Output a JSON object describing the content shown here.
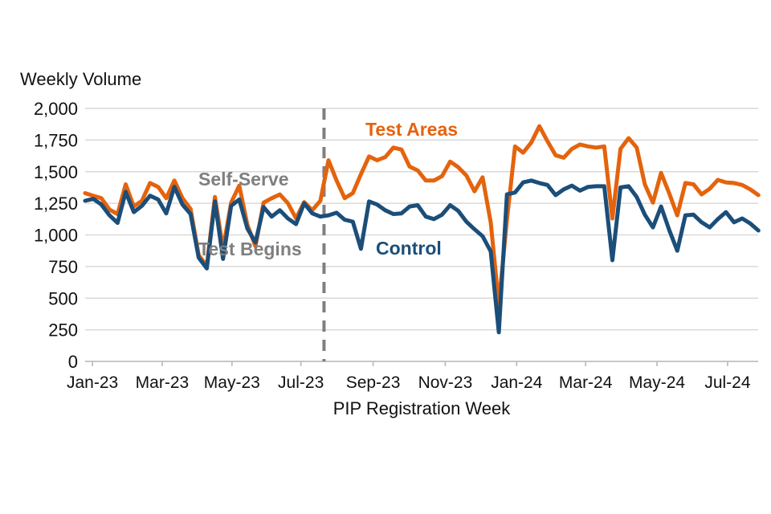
{
  "chart_data": {
    "type": "line",
    "title": "Weekly Volume",
    "xlabel": "PIP Registration Week",
    "ylabel": "",
    "ylim": [
      0,
      2000
    ],
    "ytick_step": 250,
    "yticks": [
      {
        "value": 0,
        "label": "0"
      },
      {
        "value": 250,
        "label": "250"
      },
      {
        "value": 500,
        "label": "500"
      },
      {
        "value": 750,
        "label": "750"
      },
      {
        "value": 1000,
        "label": "1,000"
      },
      {
        "value": 1250,
        "label": "1,250"
      },
      {
        "value": 1500,
        "label": "1,500"
      },
      {
        "value": 1750,
        "label": "1,750"
      },
      {
        "value": 2000,
        "label": "2,000"
      }
    ],
    "x_unit": "week",
    "n_points": 84,
    "x_ticks": [
      {
        "label": "Jan-23",
        "week": 0.9
      },
      {
        "label": "Mar-23",
        "week": 9.5
      },
      {
        "label": "May-23",
        "week": 18.1
      },
      {
        "label": "Jul-23",
        "week": 26.6
      },
      {
        "label": "Sep-23",
        "week": 35.5
      },
      {
        "label": "Nov-23",
        "week": 44.4
      },
      {
        "label": "Jan-24",
        "week": 53.2
      },
      {
        "label": "Mar-24",
        "week": 61.7
      },
      {
        "label": "May-24",
        "week": 70.5
      },
      {
        "label": "Jul-24",
        "week": 79.2
      }
    ],
    "grid": "horizontal",
    "legend_position": "inline-labels",
    "annotation": {
      "line1": "Self-Serve",
      "line2": "Test Begins",
      "color": "#7f7f7f",
      "divider_week": 29.45,
      "divider_style": "dashed"
    },
    "series": [
      {
        "name": "Test Areas",
        "color": "#e4630d",
        "values": [
          1330,
          1310,
          1290,
          1200,
          1165,
          1400,
          1225,
          1270,
          1410,
          1380,
          1290,
          1430,
          1290,
          1205,
          840,
          755,
          1300,
          890,
          1255,
          1390,
          1080,
          910,
          1255,
          1290,
          1320,
          1250,
          1130,
          1260,
          1195,
          1270,
          1590,
          1430,
          1290,
          1330,
          1480,
          1620,
          1590,
          1615,
          1690,
          1675,
          1540,
          1510,
          1430,
          1430,
          1465,
          1580,
          1535,
          1470,
          1345,
          1455,
          1100,
          450,
          1120,
          1700,
          1650,
          1730,
          1860,
          1740,
          1630,
          1610,
          1680,
          1715,
          1700,
          1690,
          1700,
          1130,
          1680,
          1765,
          1690,
          1400,
          1255,
          1490,
          1330,
          1155,
          1410,
          1400,
          1320,
          1365,
          1435,
          1415,
          1410,
          1395,
          1360,
          1315
        ]
      },
      {
        "name": "Control",
        "color": "#1b4e79",
        "values": [
          1270,
          1285,
          1240,
          1155,
          1095,
          1340,
          1180,
          1230,
          1310,
          1280,
          1170,
          1380,
          1240,
          1165,
          820,
          735,
          1265,
          810,
          1230,
          1280,
          1050,
          940,
          1220,
          1145,
          1195,
          1130,
          1085,
          1250,
          1170,
          1145,
          1155,
          1175,
          1120,
          1105,
          890,
          1265,
          1240,
          1195,
          1165,
          1170,
          1225,
          1235,
          1145,
          1125,
          1160,
          1235,
          1190,
          1105,
          1045,
          990,
          870,
          230,
          1320,
          1335,
          1415,
          1430,
          1410,
          1395,
          1315,
          1360,
          1390,
          1350,
          1380,
          1385,
          1385,
          800,
          1375,
          1385,
          1300,
          1160,
          1060,
          1225,
          1040,
          875,
          1155,
          1160,
          1100,
          1060,
          1125,
          1180,
          1100,
          1130,
          1090,
          1035
        ]
      }
    ]
  },
  "labels": {
    "title": "Weekly Volume",
    "x_axis_title": "PIP Registration Week",
    "annotation_line1": "Self-Serve",
    "annotation_line2": "Test Begins",
    "test_areas": "Test Areas",
    "control": "Control"
  },
  "colors": {
    "test_areas": "#e4630d",
    "control": "#1b4e79",
    "annotation_gray": "#7f7f7f",
    "gridline": "#d9d9d9",
    "axis": "#bfbfbf",
    "text": "#111111",
    "background": "#ffffff"
  }
}
